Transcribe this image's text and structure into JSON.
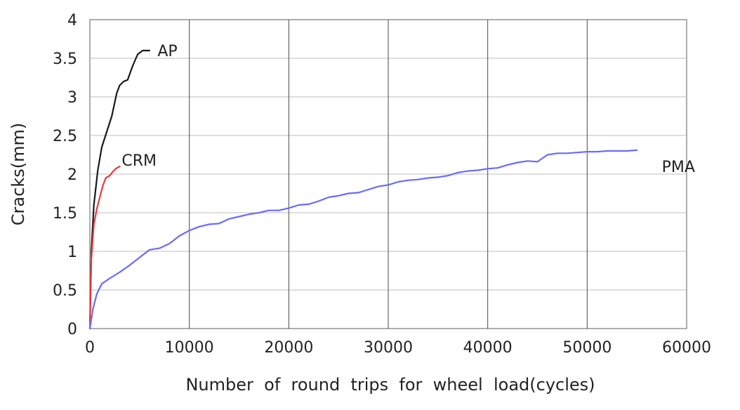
{
  "chart_data": {
    "type": "line",
    "title": "",
    "xlabel": "Number  of  round  trips  for  wheel  load(cycles)",
    "ylabel": "Cracks(mm)",
    "xlim": [
      0,
      60000
    ],
    "ylim": [
      0,
      4
    ],
    "xticks": [
      0,
      10000,
      20000,
      30000,
      40000,
      50000,
      60000
    ],
    "xtick_labels": [
      "0",
      "10000",
      "20000",
      "30000",
      "40000",
      "50000",
      "60000"
    ],
    "yticks": [
      0,
      0.5,
      1,
      1.5,
      2,
      2.5,
      3,
      3.5,
      4
    ],
    "ytick_labels": [
      "0",
      "0.5",
      "1",
      "1.5",
      "2",
      "2.5",
      "3",
      "3.5",
      "4"
    ],
    "grid": true,
    "series": [
      {
        "name": "AP",
        "color": "#1a1a1a",
        "x": [
          0,
          150,
          400,
          800,
          1200,
          1700,
          2200,
          2700,
          3000,
          3400,
          3800,
          4300,
          4800,
          5300,
          6000
        ],
        "y": [
          0,
          1.0,
          1.6,
          2.05,
          2.35,
          2.55,
          2.75,
          3.05,
          3.15,
          3.2,
          3.22,
          3.4,
          3.55,
          3.6,
          3.6
        ],
        "label_at": [
          6800,
          3.6
        ]
      },
      {
        "name": "CRM",
        "color": "#e83a3a",
        "x": [
          0,
          150,
          400,
          700,
          1000,
          1300,
          1600,
          2000,
          2300,
          2600,
          3000
        ],
        "y": [
          0,
          0.9,
          1.35,
          1.55,
          1.7,
          1.85,
          1.95,
          1.98,
          2.03,
          2.07,
          2.1
        ],
        "label_at": [
          3200,
          2.18
        ]
      },
      {
        "name": "PMA",
        "color": "#6a6cf5",
        "x": [
          0,
          300,
          700,
          1200,
          2000,
          3000,
          4000,
          5000,
          6000,
          7000,
          8000,
          9000,
          10000,
          11000,
          12000,
          13000,
          14000,
          15000,
          16000,
          17000,
          18000,
          19000,
          20000,
          21000,
          22000,
          23000,
          24000,
          25000,
          26000,
          27000,
          28000,
          29000,
          30000,
          31000,
          32000,
          33000,
          34000,
          35000,
          36000,
          37000,
          38000,
          39000,
          40000,
          41000,
          42000,
          43000,
          44000,
          45000,
          46000,
          47000,
          48000,
          49000,
          50000,
          51000,
          52000,
          53000,
          54000,
          55000
        ],
        "y": [
          0,
          0.25,
          0.45,
          0.58,
          0.65,
          0.73,
          0.82,
          0.92,
          1.02,
          1.04,
          1.1,
          1.2,
          1.27,
          1.32,
          1.35,
          1.36,
          1.42,
          1.45,
          1.48,
          1.5,
          1.53,
          1.53,
          1.56,
          1.6,
          1.61,
          1.65,
          1.7,
          1.72,
          1.75,
          1.76,
          1.8,
          1.84,
          1.86,
          1.9,
          1.92,
          1.93,
          1.95,
          1.96,
          1.98,
          2.02,
          2.04,
          2.05,
          2.07,
          2.08,
          2.12,
          2.15,
          2.17,
          2.16,
          2.25,
          2.27,
          2.27,
          2.28,
          2.29,
          2.29,
          2.3,
          2.3,
          2.3,
          2.31
        ],
        "label_at": [
          57500,
          2.1
        ]
      }
    ]
  }
}
